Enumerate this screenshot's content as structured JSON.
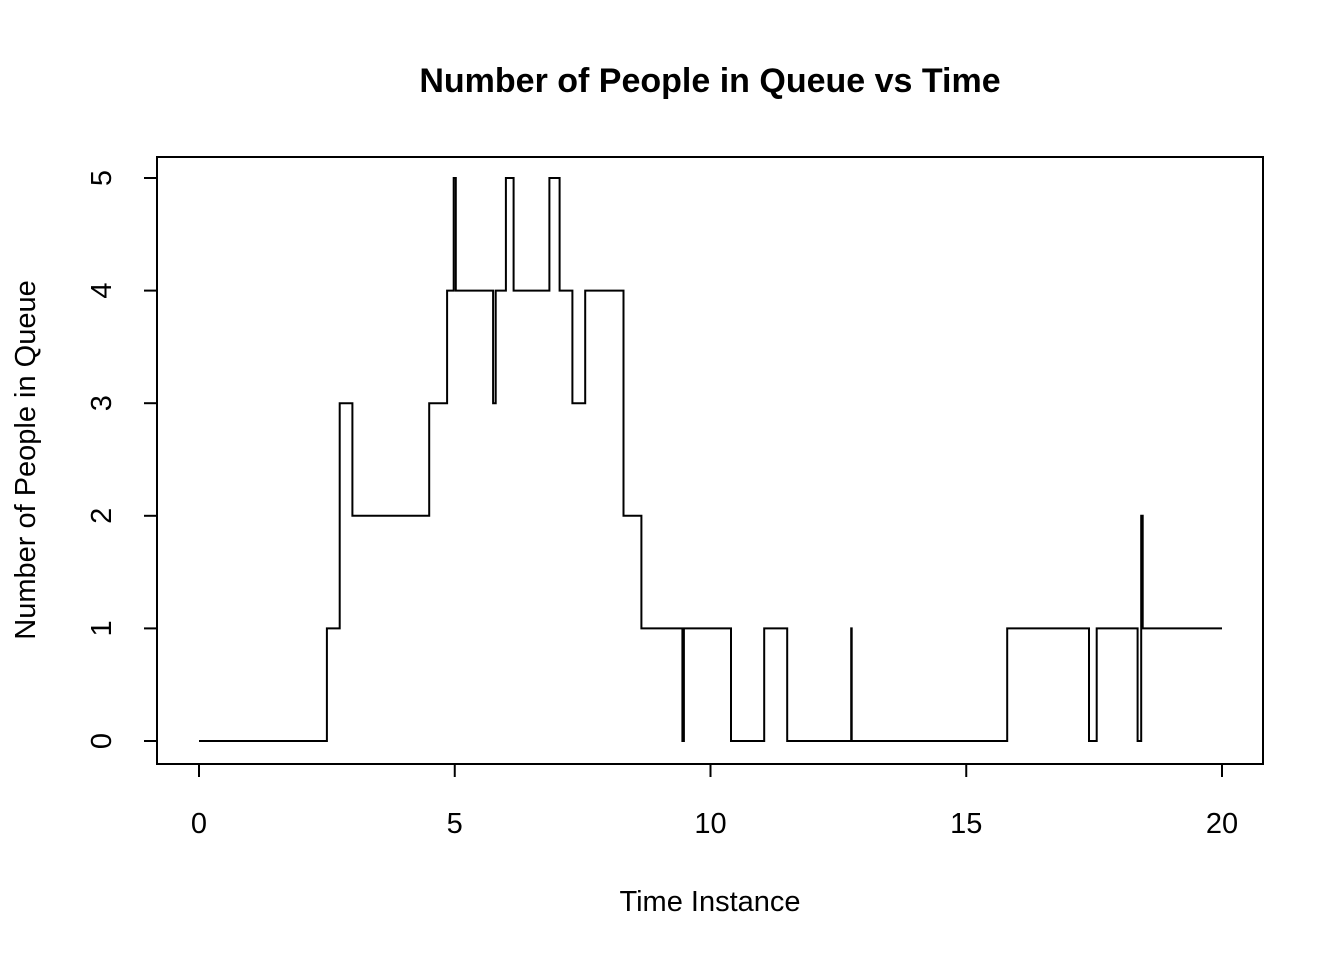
{
  "chart_data": {
    "type": "line",
    "step": true,
    "title": "Number of People in Queue vs Time",
    "xlabel": "Time Instance",
    "ylabel": "Number of People in Queue",
    "xlim": [
      0,
      20
    ],
    "ylim": [
      0,
      5
    ],
    "xticks": [
      0,
      5,
      10,
      15,
      20
    ],
    "yticks": [
      0,
      1,
      2,
      3,
      4,
      5
    ],
    "grid": false,
    "series": [
      {
        "x": [
          0,
          2.5,
          2.75,
          3.0,
          4.5,
          4.85,
          4.98,
          5.02,
          5.75,
          5.8,
          6.0,
          6.15,
          6.85,
          7.05,
          7.3,
          7.55,
          8.3,
          8.65,
          9.45,
          9.48,
          10.4,
          11.05,
          11.5,
          12.75,
          12.76,
          15.8,
          17.4,
          17.55,
          18.35,
          18.42,
          18.45,
          18.47,
          20.0
        ],
        "y": [
          0,
          1,
          3,
          2,
          3,
          4,
          5,
          4,
          3,
          4,
          5,
          4,
          5,
          4,
          3,
          4,
          2,
          1,
          0,
          1,
          0,
          1,
          0,
          1,
          0,
          1,
          0,
          1,
          0,
          2,
          1,
          1,
          1
        ]
      }
    ]
  }
}
